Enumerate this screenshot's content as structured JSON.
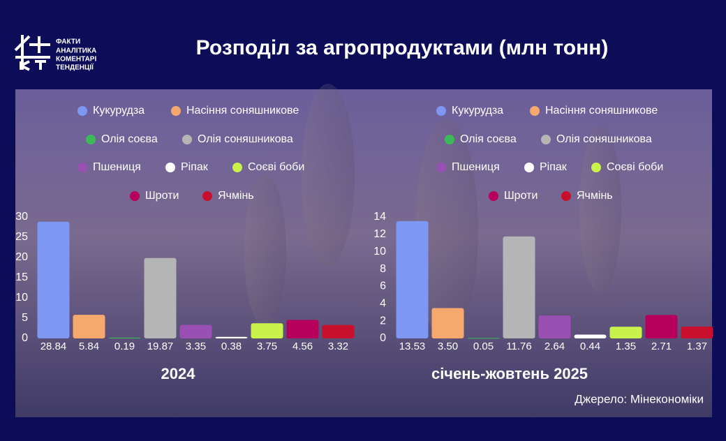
{
  "header": {
    "logo_lines": [
      "ФАКТИ",
      "АНАЛІТИКА",
      "КОМЕНТАРІ",
      "ТЕНДЕНЦІЇ"
    ],
    "title": "Розподіл за агропродуктами (млн тонн)"
  },
  "source": "Джерело: Мінекономіки",
  "chart_data": [
    {
      "type": "bar",
      "title": "2024",
      "categories": [
        "Кукурудза",
        "Насіння соняшникове",
        "Олія соєва",
        "Олія соняшникова",
        "Пшениця",
        "Ріпак",
        "Соєві боби",
        "Шроти",
        "Ячмінь"
      ],
      "values": [
        28.84,
        5.84,
        0.19,
        19.87,
        3.35,
        0.38,
        3.75,
        4.56,
        3.32
      ],
      "colors": [
        "#7d97f2",
        "#f5a96c",
        "#3cba58",
        "#b5b5b5",
        "#9a4fb2",
        "#ffffff",
        "#c9f24c",
        "#b6005b",
        "#c8102e"
      ],
      "ylim": [
        0,
        30
      ],
      "yticks": [
        0,
        5,
        10,
        15,
        20,
        25,
        30
      ],
      "grid": false
    },
    {
      "type": "bar",
      "title": "січень-жовтень 2025",
      "categories": [
        "Кукурудза",
        "Насіння соняшникове",
        "Олія соєва",
        "Олія соняшникова",
        "Пшениця",
        "Ріпак",
        "Соєві боби",
        "Шроти",
        "Ячмінь"
      ],
      "values": [
        13.53,
        3.5,
        0.05,
        11.76,
        2.64,
        0.44,
        1.35,
        2.71,
        1.37
      ],
      "value_labels": [
        "13.53",
        "3.50",
        "0.05",
        "11.76",
        "2.64",
        "0.44",
        "1.35",
        "2.71",
        "1.37"
      ],
      "colors": [
        "#7d97f2",
        "#f5a96c",
        "#3cba58",
        "#b5b5b5",
        "#9a4fb2",
        "#ffffff",
        "#c9f24c",
        "#b6005b",
        "#c8102e"
      ],
      "ylim": [
        0,
        14
      ],
      "yticks": [
        0,
        2,
        4,
        6,
        8,
        10,
        12,
        14
      ],
      "grid": false
    }
  ]
}
